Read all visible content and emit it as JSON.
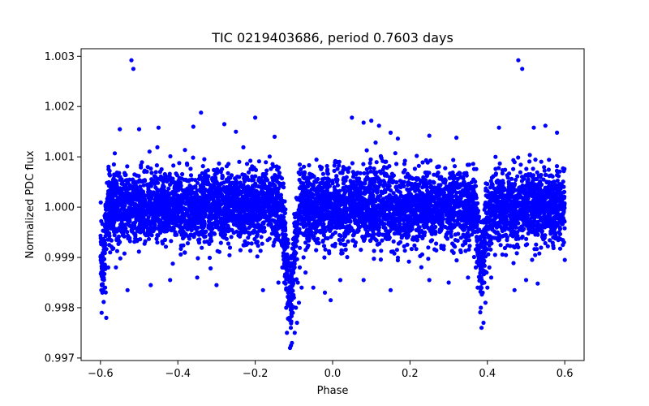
{
  "chart_data": {
    "type": "scatter",
    "title": "TIC 0219403686, period 0.7603 days",
    "xlabel": "Phase",
    "ylabel": "Normalized PDC flux",
    "xlim": [
      -0.65,
      0.65
    ],
    "ylim": [
      0.99695,
      1.00315
    ],
    "grid": false,
    "marker_color": "#0000ff",
    "x_ticks": [
      {
        "value": -0.6,
        "label": "−0.6"
      },
      {
        "value": -0.4,
        "label": "−0.4"
      },
      {
        "value": -0.2,
        "label": "−0.2"
      },
      {
        "value": 0.0,
        "label": "0.0"
      },
      {
        "value": 0.2,
        "label": "0.2"
      },
      {
        "value": 0.4,
        "label": "0.4"
      },
      {
        "value": 0.6,
        "label": "0.6"
      }
    ],
    "y_ticks": [
      {
        "value": 0.997,
        "label": "0.997"
      },
      {
        "value": 0.998,
        "label": "0.998"
      },
      {
        "value": 0.999,
        "label": "0.999"
      },
      {
        "value": 1.0,
        "label": "1.000"
      },
      {
        "value": 1.001,
        "label": "1.001"
      },
      {
        "value": 1.002,
        "label": "1.002"
      },
      {
        "value": 1.003,
        "label": "1.003"
      }
    ],
    "series": [
      {
        "points": [
          [
            -0.52,
            1.00292
          ],
          [
            -0.515,
            1.00275
          ],
          [
            0.48,
            1.00292
          ],
          [
            0.49,
            1.00275
          ],
          [
            -0.34,
            1.00188
          ],
          [
            -0.2,
            1.00178
          ],
          [
            0.05,
            1.00178
          ],
          [
            0.08,
            1.00168
          ],
          [
            0.1,
            1.00172
          ],
          [
            0.12,
            1.00162
          ],
          [
            -0.55,
            1.00155
          ],
          [
            -0.5,
            1.00155
          ],
          [
            -0.45,
            1.00158
          ],
          [
            -0.36,
            1.0016
          ],
          [
            -0.28,
            1.00165
          ],
          [
            -0.25,
            1.0015
          ],
          [
            -0.15,
            1.0014
          ],
          [
            0.15,
            1.00148
          ],
          [
            0.25,
            1.00142
          ],
          [
            0.32,
            1.00138
          ],
          [
            0.43,
            1.00158
          ],
          [
            0.52,
            1.00158
          ],
          [
            0.55,
            1.00162
          ],
          [
            0.58,
            1.00148
          ],
          [
            -0.598,
            0.99972
          ],
          [
            -0.597,
            0.9979
          ],
          [
            -0.595,
            0.9983
          ],
          [
            -0.592,
            0.9986
          ],
          [
            -0.588,
            0.9984
          ],
          [
            -0.585,
            0.9978
          ],
          [
            -0.58,
            0.9988
          ],
          [
            -0.575,
            0.9991
          ],
          [
            -0.53,
            0.99835
          ],
          [
            -0.47,
            0.99845
          ],
          [
            -0.42,
            0.99855
          ],
          [
            -0.35,
            0.9986
          ],
          [
            -0.3,
            0.99845
          ],
          [
            -0.18,
            0.99835
          ],
          [
            -0.14,
            0.9985
          ],
          [
            -0.13,
            0.9988
          ],
          [
            -0.125,
            0.9985
          ],
          [
            -0.12,
            0.998
          ],
          [
            -0.118,
            0.9975
          ],
          [
            -0.115,
            0.9983
          ],
          [
            -0.112,
            0.9978
          ],
          [
            -0.11,
            0.9972
          ],
          [
            -0.108,
            0.9976
          ],
          [
            -0.105,
            0.9973
          ],
          [
            -0.103,
            0.9979
          ],
          [
            -0.1,
            0.9982
          ],
          [
            -0.098,
            0.9975
          ],
          [
            -0.095,
            0.998
          ],
          [
            -0.092,
            0.9977
          ],
          [
            -0.09,
            0.9985
          ],
          [
            -0.087,
            0.9981
          ],
          [
            -0.085,
            0.9988
          ],
          [
            -0.08,
            0.9984
          ],
          [
            -0.075,
            0.999
          ],
          [
            -0.07,
            0.9987
          ],
          [
            -0.065,
            0.9992
          ],
          [
            -0.05,
            0.9984
          ],
          [
            -0.02,
            0.9983
          ],
          [
            -0.005,
            0.99815
          ],
          [
            0.02,
            0.99855
          ],
          [
            0.08,
            0.99855
          ],
          [
            0.15,
            0.99835
          ],
          [
            0.25,
            0.99855
          ],
          [
            0.3,
            0.9985
          ],
          [
            0.35,
            0.9986
          ],
          [
            0.37,
            0.9988
          ],
          [
            0.375,
            0.9984
          ],
          [
            0.38,
            0.9986
          ],
          [
            0.383,
            0.998
          ],
          [
            0.385,
            0.9976
          ],
          [
            0.388,
            0.9983
          ],
          [
            0.39,
            0.9977
          ],
          [
            0.392,
            0.9985
          ],
          [
            0.395,
            0.9981
          ],
          [
            0.398,
            0.9987
          ],
          [
            0.4,
            0.9984
          ],
          [
            0.405,
            0.9988
          ],
          [
            0.41,
            0.9986
          ],
          [
            0.42,
            0.99905
          ],
          [
            0.47,
            0.99835
          ],
          [
            0.5,
            0.99855
          ],
          [
            0.53,
            0.99848
          ],
          [
            0.6,
            0.99895
          ],
          [
            0.598,
            0.9993
          ]
        ]
      }
    ]
  }
}
